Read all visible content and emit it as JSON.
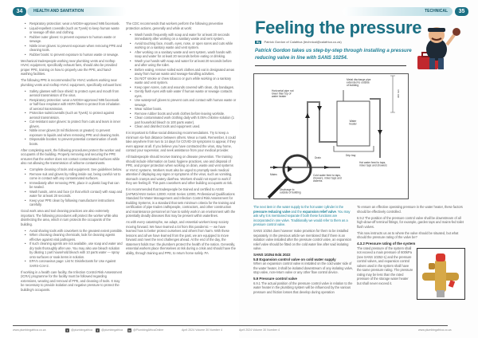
{
  "left_page": {
    "page_number": "34",
    "section": "HEALTH AND SANITATION",
    "col1": [
      {
        "type": "ul",
        "items": [
          "Respiratory protection: wear a NIOSH-approved N95 facemask.",
          "Liquid-repellent coveralls (such as Tyvek) to keep human waste or sewage off skin and clothing.",
          "Rubber outer gloves: to prevent exposure to human waste or sewage.",
          "Nitrile inner gloves: to prevent exposure when removing PPE and cleaning tools.",
          "Rubber boots: to prevent exposure to human waste or sewage."
        ]
      },
      {
        "type": "p",
        "text": "Mechanical tradespeople working near plumbing vents and rooftop HVAC equipment, specifically exhaust fans, should also be provided proper PPE, training on how to properly use the PPE, and hand-washing facilities."
      },
      {
        "type": "p",
        "text": "The following PPE is recommended for HVAC workers working near plumbing vents and rooftop HVAC equipment, specifically exhaust fans:"
      },
      {
        "type": "ul",
        "items": [
          "Safety glasses with face shield: to protect eyes and mouth from aerosol transmission of the virus.",
          "Respiratory protection: wear a NIOSH-approved N95 facemask or half-face respirator with HEPA filters to protect from inhalation of aerosol transmission.",
          "Protective suits/coveralls (such as Tyvek): to protect against aerosol transmission.",
          "Cut-resistant outer gloves: to protect from cuts and tears in inner gloves.",
          "Nitrile inner gloves (8 mil thickness or greater): to prevent exposure to liquids and when removing PPE and cleaning tools.",
          "Disposable booties: to prevent potential contamination of work boots."
        ]
      },
      {
        "type": "p",
        "text": "After completing work, the following procedures protect the worker and occupants of the building. Properly removing and securing the PPE ensures that the worker does not contact contaminated surfaces while also not allowing the transmission of airborne contaminants."
      },
      {
        "type": "ul",
        "items": [
          "Complete cleaning of tools and equipment. See guidelines below.",
          "Remove suit and gloves by rolling inside out, being careful not to come in contact with any contaminated surfaces.",
          "Immediately after removing PPE, place in a plastic bag that can be sealed.",
          "Wash hands, arms and face (or that which contact) with soap and water for at least 20 seconds.",
          "Keep your PPE clean by following manufacturer instructions carefully."
        ]
      },
      {
        "type": "p",
        "text": "Good work area and tool cleaning practices are also extremely important. The following procedures will protect the worker while also disinfecting the area, which in turn protects the occupants of the building."
      },
      {
        "type": "ul",
        "items": [
          "Avoid sharing tools with coworkers to the greatest extent possible.",
          "When choosing cleaning chemicals, look for cleaning agents effective against viral pathogens.",
          "If such cleaning agents are not available, use soap and water and dry tools thoroughly after use. You may also use bleach solution by diluting 1 part household bleach with 10 parts water — spray onto surfaces or soak items in solution.",
          "EPA's coronavirus page: List N: Disinfectants for Use Against SARS-CoV-2."
        ]
      },
      {
        "type": "p",
        "text": "If working in a health care facility, the Infection Control Risk Assessment (ICRA) programme for the facility must be followed regarding extensions, wearing and removal of PPE, and cleaning of tools. It may be necessary to provide isolation and negative pressure to protect the building's occupants."
      }
    ],
    "col2": [
      {
        "type": "p",
        "text": "The CDC recommends that workers perform the following preventive protection actions, generally and while at work:"
      },
      {
        "type": "ul",
        "items": [
          "Wash hands frequently with soap and water for at least 20 seconds immediately after working on a sanitary waste and vent system.",
          "Avoid touching face, mouth, eyes, nose, or open sores and cuts while working on a sanitary waste and vent system.",
          "After working on a sanitary waste and vent system, wash hands with soap and water for at least 20 seconds before eating or drinking.",
          "Wash your hands with soap and water for at least 20 seconds before and after using the toilet.",
          "Before eating, remove soiled work clothes and eat in designated areas away from human waste and sewage-handling activities.",
          "Do NOT smoke or chew tobacco or gum while working on a sanitary waste and vent system.",
          "Keep open sores, cuts and wounds covered with clean, dry bandages.",
          "Gently flush eyes with safe water if human waste or sewage contacts eyes.",
          "Use waterproof gloves to prevent cuts and contact with human waste or sewage.",
          "Wear rubber boots.",
          "Remove rubber boots and work clothes before leaving worksite.",
          "Clean contaminated work clothing daily with 0.05% chlorine solution (1 part household bleach to 100 parts water).",
          "Clean and disinfect tools and equipment used."
        ]
      },
      {
        "type": "p",
        "text": "It is important to follow social distancing recommendations. Try to keep a minimum six-foot distance between others. Wear a mask. Remember, it could take anywhere from two to 14 days for COVID-19 symptoms to appear, if they even appear at all. If you believe you have contracted the virus, stay home, contact your supervisor, and seek assistance from your medical provider."
      },
      {
        "type": "p",
        "text": "All tradespeople should receive training on disease prevention. The training should include information on basic hygiene practices, use and disposal of PPE, and proper protection when working on drain, waste and vent systems or HVAC systems. Workers must also be urged to promptly seek medical attention if displaying any signs or symptoms of the virus, such as vomiting, stomach cramps and watery diarrhea. Workers should not report to work if they are feeling ill. This puts coworkers and other building occupants at risk."
      },
      {
        "type": "p",
        "text": "It is recommended that tradespeople be trained and certified to ASSE (IAPMO/ANSI Series 12000: ASSE Series 12000, Professional Qualifications Standard for Water Management and Infection Control Risk Assessment for Building Systems, is a standard that sets minimum criteria for the training and certification of pipe trades craftspeople, contractors, and other construction and maintenance personnel on how to safely work in an environment with the potentially deadly diseases that may be present within waterlines."
      },
      {
        "type": "p",
        "text": "As with every catastrophe, we adapt, and essential workers keep society moving forward. We have learned a lot from this pandemic — we have learned how to better protect ourselves and others from harm. With these lessons and all we have learned from the past, we are equipped to move forward and meet the next challenges ahead. At the end of the day, the statement holds true: the plumbers protect the health of the nation. Generally, essential workers place themselves at risk during a crisis and should have the ability, through training and PPE, to return home safely. PA"
      }
    ],
    "footer": {
      "website": "www.plumbingafrica.co.za",
      "twitter": "@plumbingafrica",
      "facebook": "@plumbingafrica",
      "linkedin": "@PlumbingAfricaOnline",
      "issue": "April 2024 Volume 30 Number 4"
    }
  },
  "right_page": {
    "page_number": "35",
    "section": "TECHNICAL",
    "title": "Feeling the pressure",
    "byline_tag": "By",
    "byline": "Patrick Gordon of Calafrica (technical@calafrica.co.za)",
    "standfirst": "Patrick Gordon takes us step-by-step through installing a pressure reducing valve in line with SANS 10254.",
    "diagram_labels": {
      "discharge_pipe": [
        "Metal discharge pipe",
        "extended to outside",
        "of building"
      ],
      "horizontal_pipe": [
        "Horizontal pipe not",
        "lower than top of",
        "water heater"
      ],
      "water_heater": [
        "Water",
        "heater"
      ],
      "drip_tray": "Drip tray",
      "drain": "Drain",
      "hot_feed": [
        "Hot water feed to taps,",
        "mixer taps and showers"
      ],
      "mains": "Mains",
      "cold_feed": [
        "Cold water feed to taps,",
        "showers, mixer taps and",
        "cisterns"
      ],
      "discharge_outside": [
        "Discharge to",
        "outside of building"
      ],
      "dimension": "300 mm"
    },
    "col1": [
      {
        "type": "p",
        "cls": "teal",
        "html": true,
        "text": "The next item in the water supply to the hot water cylinder is the <b>pressure reducing valve</b> and the <b>expansion relief valve</b>. You may ask why it is mentioned separate if both these functions are incorporated in one valve. Traditionally we would refer to them as a pressure control valve."
      },
      {
        "type": "p",
        "text": "SANS 10254 does however make provision for them to be installed separately. In the previous article we mentioned that if there is an isolation valve installed after the pressure control valve, an expansion relief valve should be fitted on the cold water line after said isolating valve."
      },
      {
        "type": "h",
        "text": "SANS 10254 Ed4 2022"
      },
      {
        "type": "h",
        "text": "5.8 Expansion control valve on cold water supply"
      },
      {
        "type": "p",
        "text": "When an expansion control valve is installed on the cold water side of the water heater, it shall be isolated downstream of any isolating valve, stop valve, non-return valve or any other flow control device."
      },
      {
        "type": "h",
        "text": "5.9 Pressure control valve"
      },
      {
        "type": "p",
        "text": "6.9.1 The actual position of the pressure control valve in relation to the water heater in the plumbing system will be influenced by the various pressure and friction losses that develop during operation"
      }
    ],
    "col2": [
      {
        "type": "p",
        "text": "To ensure an effective operating pressure in the water heater, these factors should be effectively controlled."
      },
      {
        "type": "p",
        "text": "6.9.2 The position of the pressure control valve shall be downstream of all high-draw-off terminal fittings, for example, garden taps and mains-fed toilet flush valves."
      },
      {
        "type": "p",
        "text": "This now instructs us as to where the valve should be situated, but what should the pressure rating of the valve be?"
      },
      {
        "type": "h",
        "text": "4.3.2 Pressure rating of the system"
      }
    ],
    "col2_narrow": [
      {
        "type": "p",
        "text": "The rated pressure of the system shall not exceed a main pressure of 600kPa (see SANS 10252-1) and the pressure control valves, and expansion control valves used in the system shall have the same pressure rating. The pressure rating may be less than the rated pressure of the storage water heater but shall never exceed it."
      }
    ],
    "footer": {
      "issue": "April 2024 Volume 30 Number 4",
      "website": "www.plumbingafrica.co.za"
    }
  },
  "colors": {
    "brand_teal": "#1a6f83",
    "accent_teal": "#2a8aa0"
  }
}
